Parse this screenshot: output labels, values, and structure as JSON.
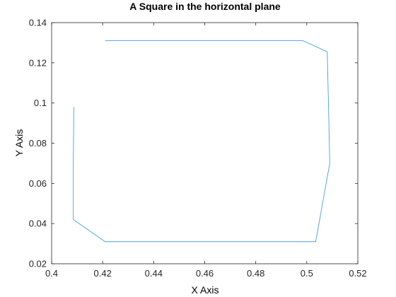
{
  "chart_data": {
    "type": "line",
    "title": "A Square in the horizontal plane",
    "xlabel": "X Axis",
    "ylabel": "Y Axis",
    "xlim": [
      0.4,
      0.52
    ],
    "ylim": [
      0.02,
      0.14
    ],
    "xticks": [
      "0.4",
      "0.42",
      "0.44",
      "0.46",
      "0.48",
      "0.5",
      "0.52"
    ],
    "yticks": [
      "0.02",
      "0.04",
      "0.06",
      "0.08",
      "0.1",
      "0.12",
      "0.14"
    ],
    "grid": false,
    "series": [
      {
        "color": "#4a9fd6",
        "x": [
          0.421,
          0.4985,
          0.508,
          0.5085,
          0.509,
          0.5035,
          0.421,
          0.4085,
          0.4085,
          0.4087
        ],
        "y": [
          0.131,
          0.131,
          0.1255,
          0.1,
          0.07,
          0.031,
          0.031,
          0.042,
          0.07,
          0.098
        ]
      }
    ]
  }
}
